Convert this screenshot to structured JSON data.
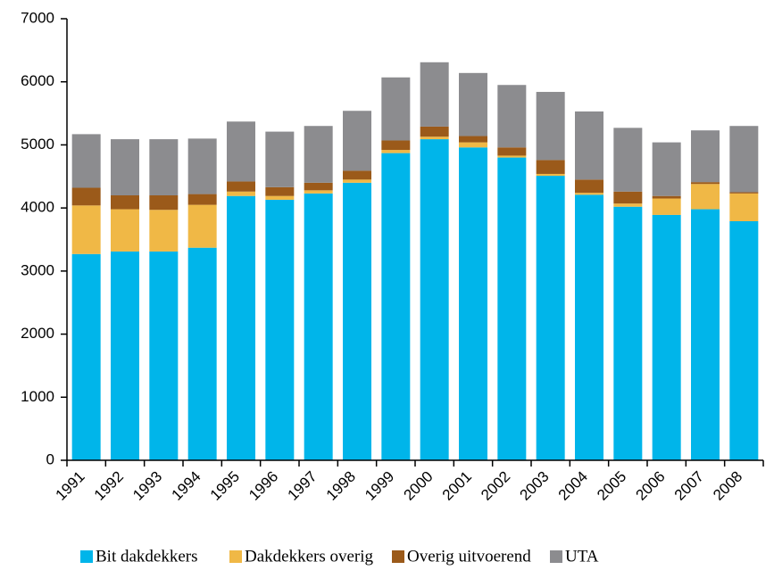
{
  "chart_data": {
    "type": "stacked_bar",
    "categories": [
      "1991",
      "1992",
      "1993",
      "1994",
      "1995",
      "1996",
      "1997",
      "1998",
      "1999",
      "2000",
      "2001",
      "2002",
      "2003",
      "2004",
      "2005",
      "2006",
      "2007",
      "2008"
    ],
    "series": [
      {
        "name": "Bit dakdekkers",
        "color": "#00b5ea",
        "values": [
          3270,
          3310,
          3310,
          3370,
          4190,
          4130,
          4230,
          4400,
          4870,
          5090,
          4960,
          4800,
          4510,
          4210,
          4020,
          3890,
          3980,
          3790
        ]
      },
      {
        "name": "Dakdekkers overig",
        "color": "#f0b846",
        "values": [
          770,
          670,
          660,
          680,
          70,
          60,
          50,
          50,
          50,
          40,
          80,
          30,
          30,
          30,
          50,
          260,
          400,
          440
        ]
      },
      {
        "name": "Overig uitvoerend",
        "color": "#9b5a1a",
        "values": [
          280,
          220,
          230,
          170,
          160,
          140,
          120,
          140,
          150,
          160,
          100,
          130,
          220,
          210,
          190,
          40,
          30,
          20
        ]
      },
      {
        "name": "UTA",
        "color": "#8c8c8f",
        "values": [
          850,
          890,
          890,
          880,
          950,
          880,
          900,
          950,
          1000,
          1020,
          1000,
          990,
          1080,
          1080,
          1010,
          850,
          820,
          1050
        ]
      }
    ],
    "ylim": [
      0,
      7000
    ],
    "yticks": [
      0,
      1000,
      2000,
      3000,
      4000,
      5000,
      6000,
      7000
    ],
    "legend": "bottom"
  }
}
